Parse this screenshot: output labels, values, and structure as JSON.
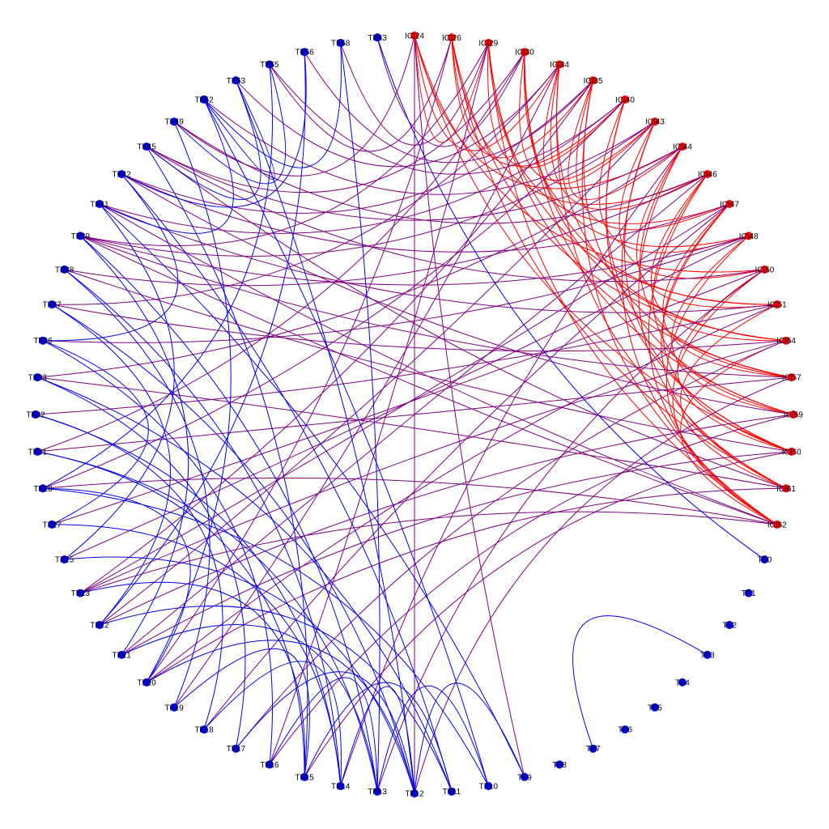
{
  "colors": {
    "background": "#ffffff",
    "node_tf": "#0000ee",
    "node_ici": "#ff0000",
    "edge_tf_tf": "#0000ee",
    "edge_ici_ici": "#ff0000",
    "edge_mixed": "#800080"
  },
  "nodes": [
    {
      "id": "ICI24",
      "label": "ICI24",
      "group": "ICI"
    },
    {
      "id": "ICI26",
      "label": "ICI26",
      "group": "ICI"
    },
    {
      "id": "ICI29",
      "label": "ICI29",
      "group": "ICI"
    },
    {
      "id": "ICI30",
      "label": "ICI30",
      "group": "ICI"
    },
    {
      "id": "ICI34",
      "label": "ICI34",
      "group": "ICI"
    },
    {
      "id": "ICI35",
      "label": "ICI35",
      "group": "ICI"
    },
    {
      "id": "ICI40",
      "label": "ICI40",
      "group": "ICI"
    },
    {
      "id": "ICI43",
      "label": "ICI43",
      "group": "ICI"
    },
    {
      "id": "ICI44",
      "label": "ICI44",
      "group": "ICI"
    },
    {
      "id": "ICI46",
      "label": "ICI46",
      "group": "ICI"
    },
    {
      "id": "ICI47",
      "label": "ICI47",
      "group": "ICI"
    },
    {
      "id": "ICI48",
      "label": "ICI48",
      "group": "ICI"
    },
    {
      "id": "ICI50",
      "label": "ICI50",
      "group": "ICI"
    },
    {
      "id": "ICI51",
      "label": "ICI51",
      "group": "ICI"
    },
    {
      "id": "ICI54",
      "label": "ICI54",
      "group": "ICI"
    },
    {
      "id": "ICI57",
      "label": "ICI57",
      "group": "ICI"
    },
    {
      "id": "ICI59",
      "label": "ICI59",
      "group": "ICI"
    },
    {
      "id": "ICI60",
      "label": "ICI60",
      "group": "ICI"
    },
    {
      "id": "ICI61",
      "label": "ICI61",
      "group": "ICI"
    },
    {
      "id": "ICI62",
      "label": "ICI62",
      "group": "ICI"
    },
    {
      "id": "TF0",
      "label": "TF0",
      "group": "TF"
    },
    {
      "id": "TF1",
      "label": "TF1",
      "group": "TF"
    },
    {
      "id": "TF2",
      "label": "TF2",
      "group": "TF"
    },
    {
      "id": "TF3",
      "label": "TF3",
      "group": "TF"
    },
    {
      "id": "TF4",
      "label": "TF4",
      "group": "TF"
    },
    {
      "id": "TF5",
      "label": "TF5",
      "group": "TF"
    },
    {
      "id": "TF6",
      "label": "TF6",
      "group": "TF"
    },
    {
      "id": "TF7",
      "label": "TF7",
      "group": "TF"
    },
    {
      "id": "TF8",
      "label": "TF8",
      "group": "TF"
    },
    {
      "id": "TF9",
      "label": "TF9",
      "group": "TF"
    },
    {
      "id": "TF10",
      "label": "TF10",
      "group": "TF"
    },
    {
      "id": "TF11",
      "label": "TF11",
      "group": "TF"
    },
    {
      "id": "TF12",
      "label": "TF12",
      "group": "TF"
    },
    {
      "id": "TF13",
      "label": "TF13",
      "group": "TF"
    },
    {
      "id": "TF14",
      "label": "TF14",
      "group": "TF"
    },
    {
      "id": "TF15",
      "label": "TF15",
      "group": "TF"
    },
    {
      "id": "TF16",
      "label": "TF16",
      "group": "TF"
    },
    {
      "id": "TF17",
      "label": "TF17",
      "group": "TF"
    },
    {
      "id": "TF18",
      "label": "TF18",
      "group": "TF"
    },
    {
      "id": "TF19",
      "label": "TF19",
      "group": "TF"
    },
    {
      "id": "TF20",
      "label": "TF20",
      "group": "TF"
    },
    {
      "id": "TF21",
      "label": "TF21",
      "group": "TF"
    },
    {
      "id": "TF22",
      "label": "TF22",
      "group": "TF"
    },
    {
      "id": "TF23",
      "label": "TF23",
      "group": "TF"
    },
    {
      "id": "TF25",
      "label": "TF25",
      "group": "TF"
    },
    {
      "id": "TF27",
      "label": "TF27",
      "group": "TF"
    },
    {
      "id": "TF28",
      "label": "TF28",
      "group": "TF"
    },
    {
      "id": "TF31",
      "label": "TF31",
      "group": "TF"
    },
    {
      "id": "TF32",
      "label": "TF32",
      "group": "TF"
    },
    {
      "id": "TF33",
      "label": "TF33",
      "group": "TF"
    },
    {
      "id": "TF36",
      "label": "TF36",
      "group": "TF"
    },
    {
      "id": "TF37",
      "label": "TF37",
      "group": "TF"
    },
    {
      "id": "TF38",
      "label": "TF38",
      "group": "TF"
    },
    {
      "id": "TF39",
      "label": "TF39",
      "group": "TF"
    },
    {
      "id": "TF41",
      "label": "TF41",
      "group": "TF"
    },
    {
      "id": "TF42",
      "label": "TF42",
      "group": "TF"
    },
    {
      "id": "TF45",
      "label": "TF45",
      "group": "TF"
    },
    {
      "id": "TF49",
      "label": "TF49",
      "group": "TF"
    },
    {
      "id": "TF52",
      "label": "TF52",
      "group": "TF"
    },
    {
      "id": "TF53",
      "label": "TF53",
      "group": "TF"
    },
    {
      "id": "TF55",
      "label": "TF55",
      "group": "TF"
    },
    {
      "id": "TF56",
      "label": "TF56",
      "group": "TF"
    },
    {
      "id": "TF58",
      "label": "TF58",
      "group": "TF"
    },
    {
      "id": "TF63",
      "label": "TF63",
      "group": "TF"
    }
  ],
  "edges": [
    [
      "ICI24",
      "ICI34"
    ],
    [
      "ICI24",
      "ICI44"
    ],
    [
      "ICI24",
      "ICI50"
    ],
    [
      "ICI24",
      "ICI60"
    ],
    [
      "ICI26",
      "ICI35"
    ],
    [
      "ICI26",
      "ICI46"
    ],
    [
      "ICI26",
      "ICI54"
    ],
    [
      "ICI26",
      "ICI61"
    ],
    [
      "ICI29",
      "ICI40"
    ],
    [
      "ICI29",
      "ICI47"
    ],
    [
      "ICI29",
      "ICI57"
    ],
    [
      "ICI29",
      "ICI62"
    ],
    [
      "ICI30",
      "ICI43"
    ],
    [
      "ICI30",
      "ICI48"
    ],
    [
      "ICI30",
      "ICI59"
    ],
    [
      "ICI30",
      "ICI51"
    ],
    [
      "ICI34",
      "ICI46"
    ],
    [
      "ICI34",
      "ICI54"
    ],
    [
      "ICI34",
      "ICI61"
    ],
    [
      "ICI35",
      "ICI47"
    ],
    [
      "ICI35",
      "ICI57"
    ],
    [
      "ICI35",
      "ICI62"
    ],
    [
      "ICI40",
      "ICI48"
    ],
    [
      "ICI40",
      "ICI59"
    ],
    [
      "ICI40",
      "ICI60"
    ],
    [
      "ICI43",
      "ICI50"
    ],
    [
      "ICI43",
      "ICI60"
    ],
    [
      "ICI43",
      "ICI62"
    ],
    [
      "ICI44",
      "ICI51"
    ],
    [
      "ICI44",
      "ICI57"
    ],
    [
      "ICI44",
      "ICI61"
    ],
    [
      "ICI46",
      "ICI54"
    ],
    [
      "ICI46",
      "ICI59"
    ],
    [
      "ICI46",
      "ICI62"
    ],
    [
      "ICI47",
      "ICI57"
    ],
    [
      "ICI47",
      "ICI60"
    ],
    [
      "ICI47",
      "ICI61"
    ],
    [
      "ICI48",
      "ICI59"
    ],
    [
      "ICI48",
      "ICI62"
    ],
    [
      "ICI50",
      "ICI60"
    ],
    [
      "ICI50",
      "ICI62"
    ],
    [
      "ICI51",
      "ICI61"
    ],
    [
      "ICI54",
      "ICI62"
    ],
    [
      "ICI26",
      "ICI40"
    ],
    [
      "ICI24",
      "ICI29"
    ],
    [
      "ICI34",
      "ICI43"
    ],
    [
      "ICI35",
      "ICI44"
    ],
    [
      "ICI29",
      "ICI51"
    ],
    [
      "ICI30",
      "ICI54"
    ],
    [
      "ICI62",
      "TF39"
    ],
    [
      "ICI62",
      "TF28"
    ],
    [
      "ICI62",
      "TF23"
    ],
    [
      "ICI62",
      "TF41"
    ],
    [
      "ICI61",
      "TF33"
    ],
    [
      "ICI61",
      "TF20"
    ],
    [
      "ICI61",
      "TF45"
    ],
    [
      "ICI60",
      "TF38"
    ],
    [
      "ICI60",
      "TF21"
    ],
    [
      "ICI60",
      "TF15"
    ],
    [
      "ICI59",
      "TF42"
    ],
    [
      "ICI59",
      "TF22"
    ],
    [
      "ICI59",
      "TF16"
    ],
    [
      "ICI57",
      "TF39"
    ],
    [
      "ICI57",
      "TF31"
    ],
    [
      "ICI57",
      "TF12"
    ],
    [
      "ICI54",
      "TF37"
    ],
    [
      "ICI54",
      "TF23"
    ],
    [
      "ICI54",
      "TF17"
    ],
    [
      "ICI51",
      "TF41"
    ],
    [
      "ICI51",
      "TF32"
    ],
    [
      "ICI51",
      "TF20"
    ],
    [
      "ICI50",
      "TF45"
    ],
    [
      "ICI50",
      "TF27"
    ],
    [
      "ICI50",
      "TF13"
    ],
    [
      "ICI48",
      "TF39"
    ],
    [
      "ICI48",
      "TF36"
    ],
    [
      "ICI48",
      "TF25"
    ],
    [
      "ICI47",
      "TF42"
    ],
    [
      "ICI47",
      "TF23"
    ],
    [
      "ICI47",
      "TF18"
    ],
    [
      "ICI46",
      "TF49"
    ],
    [
      "ICI46",
      "TF38"
    ],
    [
      "ICI46",
      "TF21"
    ],
    [
      "ICI44",
      "TF45"
    ],
    [
      "ICI44",
      "TF33"
    ],
    [
      "ICI44",
      "TF14"
    ],
    [
      "ICI43",
      "TF52"
    ],
    [
      "ICI43",
      "TF39"
    ],
    [
      "ICI43",
      "TF22"
    ],
    [
      "ICI40",
      "TF55"
    ],
    [
      "ICI40",
      "TF41"
    ],
    [
      "ICI40",
      "TF28"
    ],
    [
      "ICI35",
      "TF56"
    ],
    [
      "ICI35",
      "TF42"
    ],
    [
      "ICI35",
      "TF23"
    ],
    [
      "ICI34",
      "TF53"
    ],
    [
      "ICI34",
      "TF37"
    ],
    [
      "ICI34",
      "TF19"
    ],
    [
      "ICI30",
      "TF63"
    ],
    [
      "ICI30",
      "TF45"
    ],
    [
      "ICI30",
      "TF31"
    ],
    [
      "ICI29",
      "TF58"
    ],
    [
      "ICI29",
      "TF39"
    ],
    [
      "ICI29",
      "TF16"
    ],
    [
      "ICI26",
      "TF55"
    ],
    [
      "ICI26",
      "TF20"
    ],
    [
      "ICI24",
      "TF12"
    ],
    [
      "ICI24",
      "TF49"
    ],
    [
      "ICI24",
      "TF9"
    ],
    [
      "TF53",
      "TF12"
    ],
    [
      "TF52",
      "TF10"
    ],
    [
      "TF56",
      "TF22"
    ],
    [
      "TF63",
      "TF0"
    ],
    [
      "TF58",
      "TF13"
    ],
    [
      "TF55",
      "TF28"
    ],
    [
      "TF53",
      "TF45"
    ],
    [
      "TF52",
      "TF41"
    ],
    [
      "TF49",
      "TF20"
    ],
    [
      "TF45",
      "TF15"
    ],
    [
      "TF42",
      "TF36"
    ],
    [
      "TF42",
      "TF11"
    ],
    [
      "TF41",
      "TF25"
    ],
    [
      "TF41",
      "TF9"
    ],
    [
      "TF39",
      "TF13"
    ],
    [
      "TF39",
      "TF21"
    ],
    [
      "TF38",
      "TF14"
    ],
    [
      "TF38",
      "TF19"
    ],
    [
      "TF37",
      "TF22"
    ],
    [
      "TF37",
      "TF12"
    ],
    [
      "TF36",
      "TF27"
    ],
    [
      "TF36",
      "TF16"
    ],
    [
      "TF33",
      "TF17"
    ],
    [
      "TF33",
      "TF11"
    ],
    [
      "TF32",
      "TF18"
    ],
    [
      "TF32",
      "TF14"
    ],
    [
      "TF31",
      "TF15"
    ],
    [
      "TF31",
      "TF13"
    ],
    [
      "TF28",
      "TF10"
    ],
    [
      "TF28",
      "TF20"
    ],
    [
      "TF27",
      "TF14"
    ],
    [
      "TF25",
      "TF12"
    ],
    [
      "TF23",
      "TF15"
    ],
    [
      "TF22",
      "TF11"
    ],
    [
      "TF21",
      "TF13"
    ],
    [
      "TF20",
      "TF12"
    ],
    [
      "TF19",
      "TF15"
    ],
    [
      "TF18",
      "TF14"
    ],
    [
      "TF17",
      "TF12"
    ],
    [
      "TF16",
      "TF13"
    ],
    [
      "TF15",
      "TF11"
    ],
    [
      "TF14",
      "TF12"
    ],
    [
      "TF13",
      "TF10"
    ],
    [
      "TF9",
      "TF12"
    ],
    [
      "TF3",
      "TF7"
    ],
    [
      "TF52",
      "TF58"
    ],
    [
      "TF55",
      "TF49"
    ],
    [
      "TF56",
      "TF42"
    ],
    [
      "TF53",
      "TF52"
    ]
  ]
}
